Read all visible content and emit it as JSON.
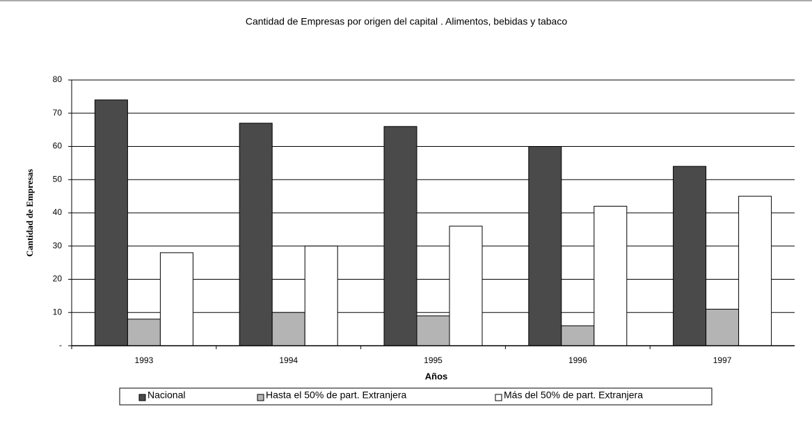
{
  "chart_data": {
    "type": "bar",
    "title": "Cantidad de Empresas por origen del capital . Alimentos, bebidas y tabaco",
    "y_label": "Cantidad de Empresas",
    "x_label": "Años",
    "categories": [
      "1993",
      "1994",
      "1995",
      "1996",
      "1997"
    ],
    "series": [
      {
        "name": "Nacional",
        "color": "#4a4a4a",
        "values": [
          74,
          67,
          66,
          60,
          54
        ]
      },
      {
        "name": "Hasta el 50% de part. Extranjera",
        "color": "#b4b4b4",
        "values": [
          8,
          10,
          9,
          6,
          11
        ]
      },
      {
        "name": "Más del 50% de part. Extranjera",
        "color": "#ffffff",
        "values": [
          28,
          30,
          36,
          42,
          45
        ]
      }
    ],
    "ylim": [
      0,
      80
    ],
    "yticks": [
      {
        "value": 0,
        "label": "-"
      },
      10,
      20,
      30,
      40,
      50,
      60,
      70,
      80
    ],
    "grid": true,
    "legend": "bottom"
  }
}
